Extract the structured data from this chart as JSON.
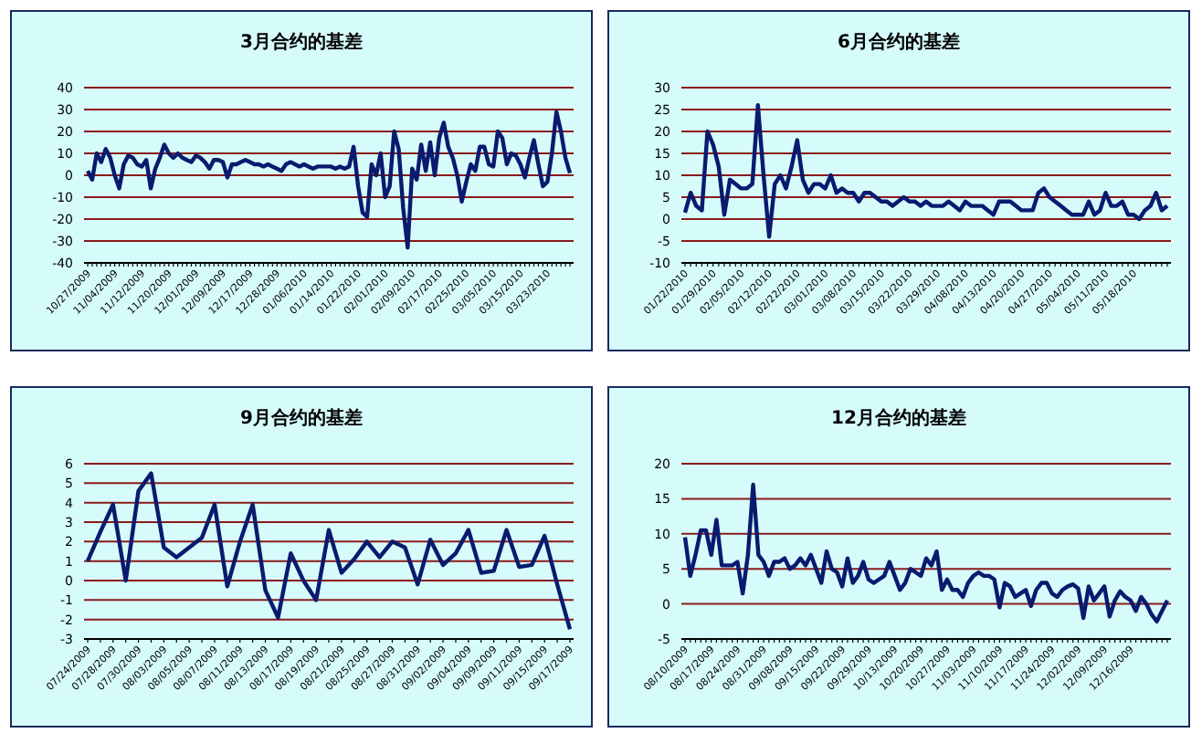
{
  "chart_data": [
    {
      "type": "line",
      "title": "3月合约的基差",
      "color": "#0a1a6e",
      "grid": "y",
      "ylim": [
        -40,
        40
      ],
      "yticks": [
        -40,
        -30,
        -20,
        -10,
        0,
        10,
        20,
        30,
        40
      ],
      "categories": [
        "10/27/2009",
        null,
        null,
        null,
        null,
        null,
        "11/04/2009",
        null,
        null,
        null,
        null,
        null,
        "11/12/2009",
        null,
        null,
        null,
        null,
        null,
        "11/20/2009",
        null,
        null,
        null,
        null,
        null,
        "12/01/2009",
        null,
        null,
        null,
        null,
        null,
        "12/09/2009",
        null,
        null,
        null,
        null,
        null,
        "12/17/2009",
        null,
        null,
        null,
        null,
        null,
        "12/28/2009",
        null,
        null,
        null,
        null,
        null,
        "01/06/2010",
        null,
        null,
        null,
        null,
        null,
        "01/14/2010",
        null,
        null,
        null,
        null,
        null,
        "01/22/2010",
        null,
        null,
        null,
        null,
        null,
        "02/01/2010",
        null,
        null,
        null,
        null,
        null,
        "02/09/2010",
        null,
        null,
        null,
        null,
        null,
        "02/17/2010",
        null,
        null,
        null,
        null,
        null,
        "02/25/2010",
        null,
        null,
        null,
        null,
        null,
        "03/05/2010",
        null,
        null,
        null,
        null,
        null,
        "03/15/2010",
        null,
        null,
        null,
        null,
        null,
        "03/23/2010",
        null,
        null,
        null,
        null,
        null
      ],
      "values": [
        2,
        -2,
        10,
        6,
        12,
        8,
        0,
        -6,
        5,
        9,
        8,
        5,
        4,
        7,
        -6,
        3,
        8,
        14,
        10,
        8,
        10,
        8,
        7,
        6,
        9,
        8,
        6,
        3,
        7,
        7,
        6,
        -1,
        5,
        5,
        6,
        7,
        6,
        5,
        5,
        4,
        5,
        4,
        3,
        2,
        5,
        6,
        5,
        4,
        5,
        4,
        3,
        4,
        4,
        4,
        4,
        3,
        4,
        3,
        4,
        13,
        -5,
        -17,
        -19,
        5,
        0,
        10,
        -10,
        -5,
        20,
        12,
        -15,
        -33,
        3,
        -2,
        14,
        2,
        15,
        0,
        17,
        24,
        13,
        8,
        0,
        -12,
        -3,
        5,
        2,
        13,
        13,
        5,
        4,
        20,
        17,
        5,
        10,
        9,
        5,
        -1,
        8,
        16,
        5,
        -5,
        -3,
        10,
        29,
        20,
        8,
        1
      ]
    },
    {
      "type": "line",
      "title": "6月合约的基差",
      "color": "#0a1a6e",
      "grid": "y",
      "ylim": [
        -10,
        30
      ],
      "yticks": [
        -10,
        -5,
        0,
        5,
        10,
        15,
        20,
        25,
        30
      ],
      "categories": [
        "01/22/2010",
        null,
        null,
        null,
        null,
        "01/29/2010",
        null,
        null,
        null,
        null,
        "02/05/2010",
        null,
        null,
        null,
        null,
        "02/12/2010",
        null,
        null,
        null,
        null,
        "02/22/2010",
        null,
        null,
        null,
        null,
        "03/01/2010",
        null,
        null,
        null,
        null,
        "03/08/2010",
        null,
        null,
        null,
        null,
        "03/15/2010",
        null,
        null,
        null,
        null,
        "03/22/2010",
        null,
        null,
        null,
        null,
        "03/29/2010",
        null,
        null,
        null,
        null,
        "04/08/2010",
        null,
        null,
        null,
        null,
        "04/13/2010",
        null,
        null,
        null,
        null,
        "04/20/2010",
        null,
        null,
        null,
        null,
        "04/27/2010",
        null,
        null,
        null,
        null,
        "05/04/2010",
        null,
        null,
        null,
        null,
        "05/11/2010",
        null,
        null,
        null,
        null,
        "05/18/2010",
        null,
        null,
        null,
        null,
        null,
        null
      ],
      "values": [
        1.5,
        6,
        3,
        2,
        20,
        17,
        12,
        1,
        9,
        8,
        7,
        7,
        8,
        26,
        10,
        -4,
        8,
        10,
        7,
        12,
        18,
        9,
        6,
        8,
        8,
        7,
        10,
        6,
        7,
        6,
        6,
        4,
        6,
        6,
        5,
        4,
        4,
        3,
        4,
        5,
        4,
        4,
        3,
        4,
        3,
        3,
        3,
        4,
        3,
        2,
        4,
        3,
        3,
        3,
        2,
        1,
        4,
        4,
        4,
        3,
        2,
        2,
        2,
        6,
        7,
        5,
        4,
        3,
        2,
        1,
        1,
        1,
        4,
        1,
        2,
        6,
        3,
        3,
        4,
        1,
        1,
        0,
        2,
        3,
        6,
        2,
        3
      ]
    },
    {
      "type": "line",
      "title": "9月合约的基差",
      "color": "#0a1a6e",
      "grid": "y",
      "ylim": [
        -3,
        6
      ],
      "yticks": [
        -3,
        -2,
        -1,
        0,
        1,
        2,
        3,
        4,
        5,
        6
      ],
      "categories": [
        "07/24/2009",
        null,
        "07/28/2009",
        null,
        "07/30/2009",
        null,
        "08/03/2009",
        null,
        "08/05/2009",
        null,
        "08/07/2009",
        null,
        "08/11/2009",
        null,
        "08/13/2009",
        null,
        "08/17/2009",
        null,
        "08/19/2009",
        null,
        "08/21/2009",
        null,
        "08/25/2009",
        null,
        "08/27/2009",
        null,
        "08/31/2009",
        null,
        "09/02/2009",
        null,
        "09/04/2009",
        null,
        "09/09/2009",
        null,
        "09/11/2009",
        null,
        "09/15/2009",
        null,
        "09/17/2009"
      ],
      "values": [
        1,
        2.5,
        3.9,
        0,
        4.6,
        5.5,
        1.7,
        1.2,
        1.7,
        2.2,
        3.9,
        -0.3,
        2,
        3.9,
        -0.5,
        -1.9,
        1.4,
        0,
        -1,
        2.6,
        0.4,
        1.1,
        2,
        1.2,
        2,
        1.7,
        -0.2,
        2.1,
        0.8,
        1.4,
        2.6,
        0.4,
        0.5,
        2.6,
        0.7,
        0.8,
        2.3,
        -0.2,
        -2.5
      ]
    },
    {
      "type": "line",
      "title": "12月合约的基差",
      "color": "#0a1a6e",
      "grid": "y",
      "ylim": [
        -5,
        20
      ],
      "yticks": [
        -5,
        0,
        5,
        10,
        15,
        20
      ],
      "categories": [
        "08/10/2009",
        null,
        null,
        null,
        null,
        "08/17/2009",
        null,
        null,
        null,
        null,
        "08/24/2009",
        null,
        null,
        null,
        null,
        "08/31/2009",
        null,
        null,
        null,
        null,
        "09/08/2009",
        null,
        null,
        null,
        null,
        "09/15/2009",
        null,
        null,
        null,
        null,
        "09/22/2009",
        null,
        null,
        null,
        null,
        "09/29/2009",
        null,
        null,
        null,
        null,
        "10/13/2009",
        null,
        null,
        null,
        null,
        "10/20/2009",
        null,
        null,
        null,
        null,
        "10/27/2009",
        null,
        null,
        null,
        null,
        "11/03/2009",
        null,
        null,
        null,
        null,
        "11/10/2009",
        null,
        null,
        null,
        null,
        "11/17/2009",
        null,
        null,
        null,
        null,
        "11/24/2009",
        null,
        null,
        null,
        null,
        "12/02/2009",
        null,
        null,
        null,
        null,
        "12/09/2009",
        null,
        null,
        null,
        null,
        "12/16/2009",
        null,
        null,
        null,
        null,
        null,
        null,
        null
      ],
      "values": [
        9.5,
        4,
        7,
        10.5,
        10.5,
        7,
        12,
        5.5,
        5.5,
        5.5,
        6,
        1.5,
        7,
        17,
        7,
        6,
        4,
        6,
        6,
        6.5,
        5,
        5.5,
        6.5,
        5.5,
        7,
        5,
        3,
        7.5,
        5,
        4.5,
        2.5,
        6.5,
        3,
        4,
        6,
        3.5,
        3,
        3.5,
        4,
        6,
        4,
        2,
        3,
        5,
        4.5,
        4,
        6.5,
        5.5,
        7.5,
        2,
        3.5,
        2,
        2,
        1,
        3,
        4,
        4.5,
        4,
        4,
        3.5,
        -0.5,
        3,
        2.5,
        1,
        1.5,
        2,
        -0.3,
        2,
        3,
        3,
        1.5,
        1,
        2,
        2.5,
        2.8,
        2.2,
        -2,
        2.5,
        0.5,
        1.5,
        2.5,
        -1.8,
        0.5,
        1.8,
        1,
        0.5,
        -1,
        1,
        0,
        -1.5,
        -2.5,
        -1,
        0.5
      ]
    }
  ]
}
